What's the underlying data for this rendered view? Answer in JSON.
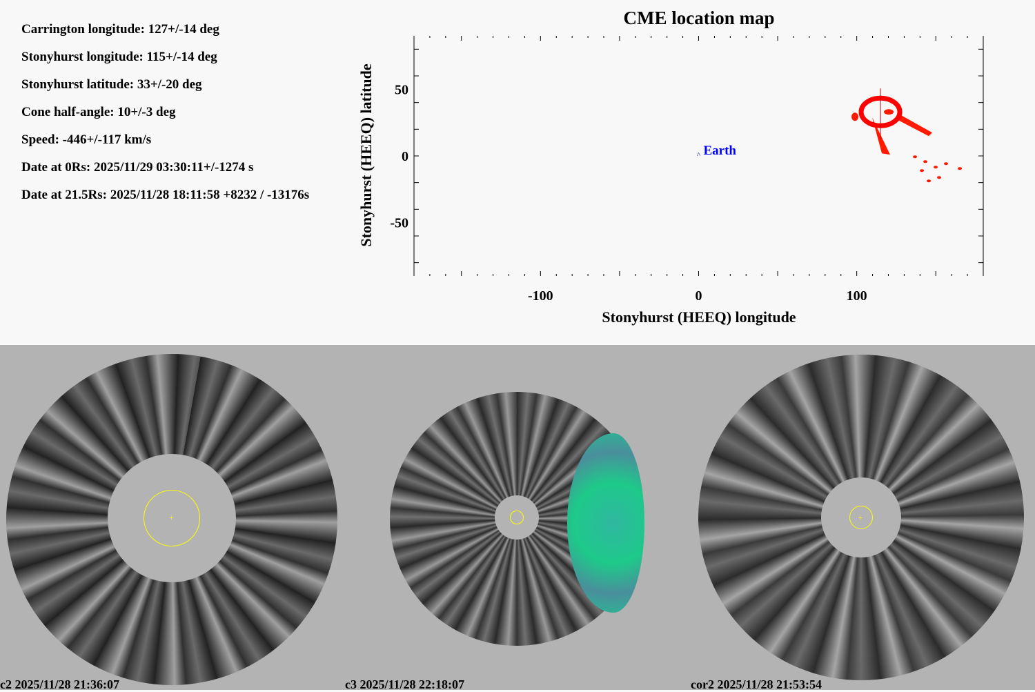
{
  "parameters": [
    "Carrington longitude: 127+/-14 deg",
    "Stonyhurst longitude: 115+/-14 deg",
    "Stonyhurst latitude: 33+/-20 deg",
    "Cone half-angle: 10+/-3 deg",
    "Speed: -446+/-117 km/s",
    "Date at 0Rs: 2025/11/29 03:30:11+/-1274 s",
    "Date at 21.5Rs: 2025/11/28 18:11:58 +8232 / -13176s"
  ],
  "chart_data": {
    "type": "scatter",
    "title": "CME location map",
    "xlabel": "Stonyhurst (HEEQ) longitude",
    "ylabel": "Stonyhurst (HEEQ) latitude",
    "xlim": [
      -180,
      180
    ],
    "ylim": [
      -90,
      90
    ],
    "xticks": [
      -100,
      0,
      100
    ],
    "yticks": [
      50,
      0,
      -50
    ],
    "grid": false,
    "points": [
      {
        "label": "Earth",
        "x": 0,
        "y": 0,
        "color": "#0000ff"
      },
      {
        "label": "",
        "x": 115,
        "y": 33,
        "color": "#ff0000"
      }
    ],
    "cme_color": "#ff1a00"
  },
  "images": [
    {
      "label": "c2 2025/11/28 21:36:07"
    },
    {
      "label": "c3 2025/11/28 22:18:07"
    },
    {
      "label": "cor2 2025/11/28 21:53:54"
    }
  ]
}
